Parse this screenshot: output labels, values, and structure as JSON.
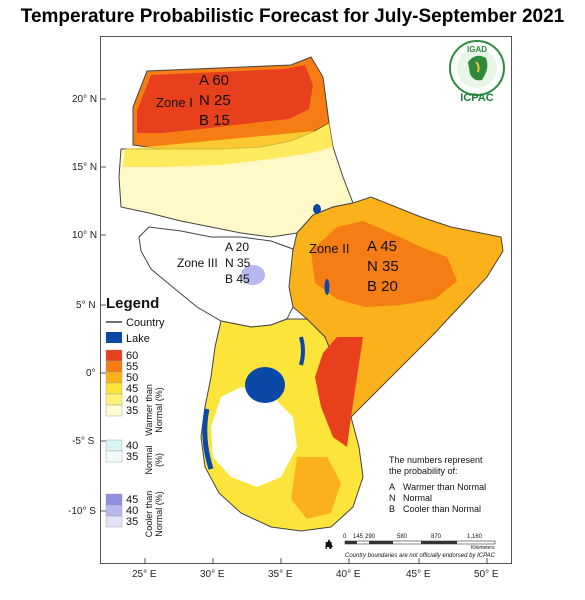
{
  "title": "Temperature Probabilistic Forecast for July-September 2021",
  "logo": {
    "top_text": "IGAD",
    "bottom_text": "ICPAC"
  },
  "axes": {
    "lat_labels": [
      "20° N",
      "15° N",
      "10° N",
      "5° N",
      "0°",
      "-5° S",
      "-10° S"
    ],
    "lon_labels": [
      "25° E",
      "30° E",
      "35° E",
      "40° E",
      "45° E",
      "50° E"
    ]
  },
  "zones": [
    {
      "name": "Zone I",
      "A": "A 60",
      "N": "N 25",
      "B": "B 15"
    },
    {
      "name": "Zone II",
      "A": "A 45",
      "N": "N 35",
      "B": "B 20"
    },
    {
      "name": "Zone III",
      "A": "A 20",
      "N": "N 35",
      "B": "B 45"
    }
  ],
  "legend": {
    "title": "Legend",
    "country": "Country",
    "lake": "Lake",
    "warmer": {
      "label_line1": "Warmer than",
      "label_line2": "Normal (%)",
      "values": [
        "60",
        "55",
        "50",
        "45",
        "40",
        "35"
      ],
      "colors": [
        "#e8401c",
        "#f57d14",
        "#fbb11a",
        "#fde43a",
        "#fff27a",
        "#fffbd2"
      ]
    },
    "normal": {
      "label_line1": "Normal",
      "label_line2": "(%)",
      "values": [
        "40",
        "35"
      ],
      "colors": [
        "#d8f4f4",
        "#f2fbfb"
      ]
    },
    "cooler": {
      "label_line1": "Cooler than",
      "label_line2": "Normal (%)",
      "values": [
        "45",
        "40",
        "35"
      ],
      "colors": [
        "#8e8fe0",
        "#b7b8ee",
        "#e2e2f8"
      ]
    },
    "colors": {
      "country": "#444444",
      "lake": "#0a49a8"
    }
  },
  "explanation": {
    "line1": "The numbers represent",
    "line2": "the probability of:",
    "items": [
      {
        "key": "A",
        "text": "Warmer than Normal"
      },
      {
        "key": "N",
        "text": "Normal"
      },
      {
        "key": "B",
        "text": "Cooler than Normal"
      }
    ]
  },
  "scale": {
    "labels": [
      "0",
      "145",
      "290",
      "580",
      "870",
      "1,160"
    ],
    "unit": "Kilometers",
    "north": "N"
  },
  "disclaimer": "Country boundaries are not officially endorsed by ICPAC"
}
